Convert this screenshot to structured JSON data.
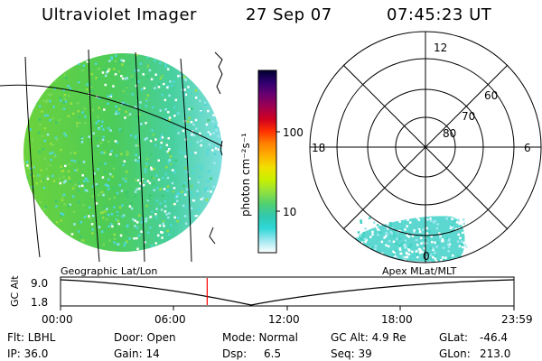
{
  "header": {
    "instrument": "Ultraviolet Imager",
    "date": "27 Sep 07",
    "time": "07:45:23 UT"
  },
  "colorbar": {
    "label": "photon cm⁻²s⁻¹",
    "ticks": [
      "100",
      "10"
    ],
    "scale": "log",
    "colors": [
      "#000030",
      "#300070",
      "#6a0070",
      "#a00050",
      "#d00020",
      "#ff3000",
      "#ff8000",
      "#ffb000",
      "#f0e000",
      "#c8f000",
      "#90e040",
      "#50d070",
      "#30c8b0",
      "#30d8d8",
      "#a0e8f0",
      "#ffffff"
    ]
  },
  "geo_image": {
    "label": "Geographic Lat/Lon",
    "base_color": "#58d04c",
    "dawn_color": "#50d8d8"
  },
  "polar_plot": {
    "label": "Apex MLat/MLT",
    "mlt_labels": [
      "12",
      "18",
      "6",
      "0"
    ],
    "lat_labels": [
      "60",
      "70",
      "80"
    ]
  },
  "timeline": {
    "ylabel": "GC Alt",
    "yticks": [
      "9.0",
      "1.8"
    ],
    "xticks": [
      "00:00",
      "06:00",
      "12:00",
      "18:00",
      "23:59"
    ],
    "current_time_fraction": 0.3234,
    "marker_color": "#ff0000"
  },
  "info": {
    "flt": "Flt: LBHL",
    "ip": "IP: 36.0",
    "door": "Door: Open",
    "gain": "Gain: 14",
    "mode": "Mode: Normal",
    "dsp_label": "Dsp:",
    "dsp_value": "6.5",
    "gcalt": "GC Alt: 4.9 Re",
    "seq": "Seq: 39",
    "glat_label": "GLat:",
    "glat_value": "-46.4",
    "glon_label": "GLon:",
    "glon_value": "213.0"
  }
}
